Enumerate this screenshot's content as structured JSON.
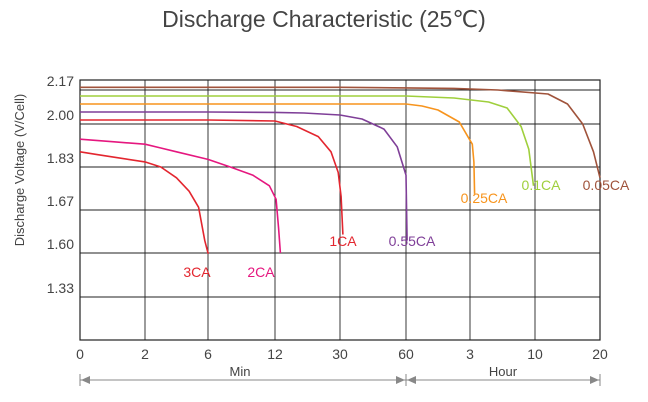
{
  "chart_data": {
    "type": "line",
    "title": "Discharge Characteristic (25℃)",
    "ylabel": "Discharge Voltage (V/Cell)",
    "y_ticks": [
      "2.17",
      "2.00",
      "1.83",
      "1.67",
      "1.60",
      "1.33"
    ],
    "x_ticks": [
      "0",
      "2",
      "6",
      "12",
      "30",
      "60",
      "3",
      "10",
      "20"
    ],
    "time_scale_labels": [
      "Min",
      "Hour"
    ],
    "grid": true,
    "series": [
      {
        "name": "3CA",
        "color": "#e3262f",
        "x": [
          0,
          0.5,
          1,
          2,
          3,
          4,
          4.8,
          5.4,
          5.8,
          6.0,
          6.08
        ],
        "y": [
          1.89,
          1.88,
          1.87,
          1.85,
          1.83,
          1.79,
          1.74,
          1.68,
          1.62,
          1.58,
          1.57
        ]
      },
      {
        "name": "2CA",
        "color": "#e5177f",
        "x": [
          0,
          1,
          2,
          3,
          4,
          6,
          8,
          10,
          11.5,
          12.3,
          13.0,
          13.5
        ],
        "y": [
          1.94,
          1.93,
          1.92,
          1.905,
          1.89,
          1.86,
          1.83,
          1.8,
          1.76,
          1.71,
          1.64,
          1.57
        ]
      },
      {
        "name": "1CA",
        "color": "#e3262f",
        "x": [
          0,
          2,
          6,
          12,
          18,
          24,
          27.5,
          29.5,
          30.5,
          31.3
        ],
        "y": [
          2.02,
          2.02,
          2.02,
          2.015,
          1.99,
          1.95,
          1.89,
          1.81,
          1.72,
          1.63
        ]
      },
      {
        "name": "0.55CA",
        "color": "#7f3f98",
        "x": [
          0,
          2,
          6,
          12,
          20,
          30,
          40,
          50,
          56,
          60,
          62
        ],
        "y": [
          2.06,
          2.06,
          2.06,
          2.058,
          2.055,
          2.045,
          2.025,
          1.98,
          1.91,
          1.8,
          1.62
        ]
      },
      {
        "name": "0.25CA",
        "color": "#f7941d",
        "x": [
          0,
          6,
          30,
          60,
          90,
          120,
          160,
          195,
          205,
          210
        ],
        "y": [
          2.1,
          2.1,
          2.1,
          2.1,
          2.09,
          2.07,
          2.01,
          1.92,
          1.85,
          1.73
        ]
      },
      {
        "name": "0.1CA",
        "color": "#9fcf3c",
        "x": [
          0,
          6,
          30,
          60,
          150,
          300,
          420,
          510,
          560,
          590
        ],
        "y": [
          2.14,
          2.14,
          2.14,
          2.14,
          2.13,
          2.11,
          2.08,
          1.99,
          1.9,
          1.76
        ]
      },
      {
        "name": "0.05CA",
        "color": "#a0533b",
        "x": [
          0,
          6,
          30,
          60,
          150,
          360,
          720,
          900,
          1040,
          1140,
          1200
        ],
        "y": [
          2.18,
          2.18,
          2.18,
          2.178,
          2.176,
          2.17,
          2.15,
          2.1,
          2.0,
          1.89,
          1.79
        ]
      }
    ]
  }
}
